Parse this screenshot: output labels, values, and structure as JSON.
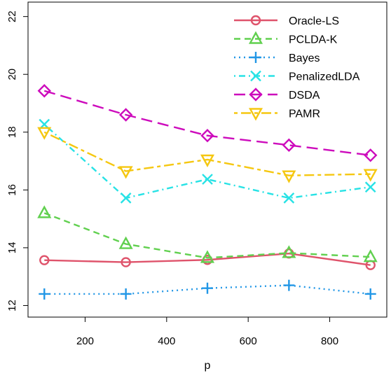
{
  "chart_data": {
    "type": "line",
    "title": "",
    "xlabel": "p",
    "ylabel": "",
    "x": [
      100,
      300,
      500,
      700,
      900
    ],
    "xlim": [
      60,
      940
    ],
    "ylim": [
      11.6,
      22.5
    ],
    "xticks": [
      200,
      400,
      600,
      800
    ],
    "yticks": [
      12,
      14,
      16,
      18,
      20,
      22
    ],
    "grid": false,
    "legend_position": "top-right",
    "series": [
      {
        "name": "Oracle-LS",
        "values": [
          13.57,
          13.5,
          13.58,
          13.8,
          13.4
        ],
        "color": "#DF536B",
        "dash": "solid",
        "marker": "circle"
      },
      {
        "name": "PCLDA-K",
        "values": [
          15.2,
          14.13,
          13.65,
          13.82,
          13.68
        ],
        "color": "#61D04F",
        "dash": "dashed",
        "marker": "triangle-up"
      },
      {
        "name": "Bayes",
        "values": [
          12.4,
          12.4,
          12.6,
          12.7,
          12.4
        ],
        "color": "#2297E6",
        "dash": "dotted",
        "marker": "plus"
      },
      {
        "name": "PenalizedLDA",
        "values": [
          18.27,
          15.72,
          16.37,
          15.72,
          16.1
        ],
        "color": "#28E2E5",
        "dash": "dotdash",
        "marker": "cross"
      },
      {
        "name": "DSDA",
        "values": [
          19.43,
          18.6,
          17.88,
          17.55,
          17.2
        ],
        "color": "#CD0BBC",
        "dash": "longdash",
        "marker": "diamond"
      },
      {
        "name": "PAMR",
        "values": [
          18.0,
          16.65,
          17.05,
          16.5,
          16.55
        ],
        "color": "#F5C710",
        "dash": "twodash",
        "marker": "triangle-down"
      }
    ]
  }
}
